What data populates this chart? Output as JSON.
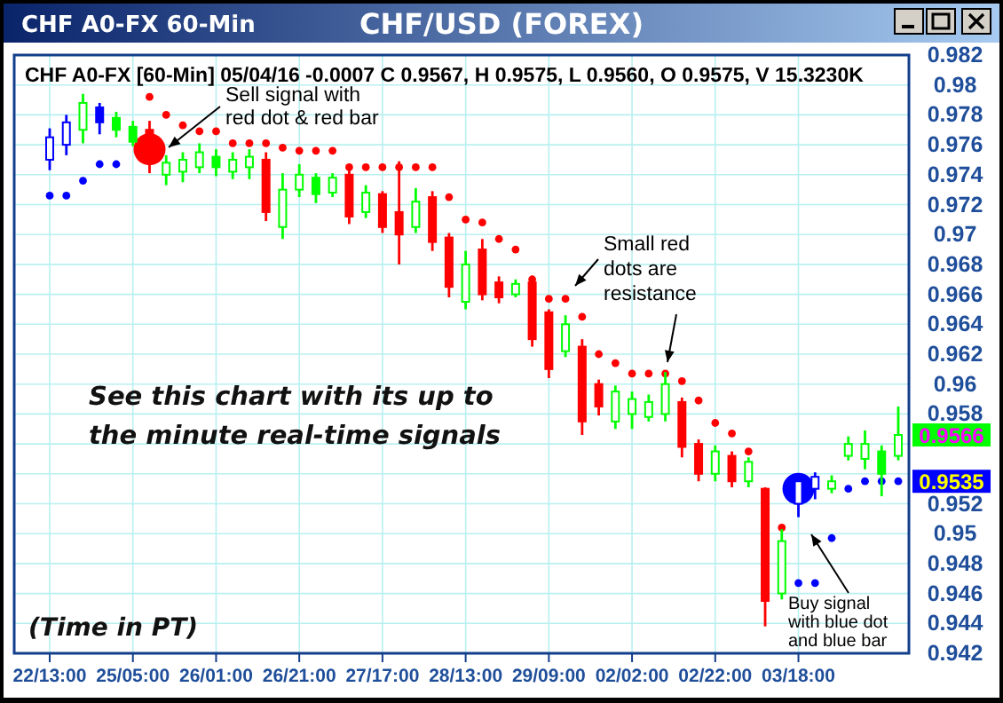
{
  "chart_data": {
    "type": "candlestick",
    "title": "CHF/USD (FOREX)",
    "subtitle": "CHF A0-FX [60-Min] 05/04/16  -0.0007 C 0.9567, H 0.9575, L 0.9560, O 0.9575, V 15.3230K",
    "categories": [
      "22/13:00",
      null,
      null,
      null,
      null,
      "25/05:00",
      null,
      null,
      null,
      null,
      "26/01:00",
      null,
      null,
      null,
      null,
      "26/21:00",
      null,
      null,
      null,
      null,
      "27/17:00",
      null,
      null,
      null,
      null,
      "28/13:00",
      null,
      null,
      null,
      null,
      "29/09:00",
      null,
      null,
      null,
      null,
      "02/02:00",
      null,
      null,
      null,
      null,
      "02/22:00",
      null,
      null,
      null,
      null,
      "03/18:00",
      null,
      null,
      null,
      null,
      null,
      null
    ],
    "ohlc": [
      [
        0.975,
        0.9771,
        0.9743,
        0.9765
      ],
      [
        0.976,
        0.978,
        0.9753,
        0.9775
      ],
      [
        0.977,
        0.9794,
        0.9761,
        0.9788
      ],
      [
        0.9785,
        0.9788,
        0.9767,
        0.9775
      ],
      [
        0.9778,
        0.9782,
        0.9765,
        0.977
      ],
      [
        0.9772,
        0.9776,
        0.9759,
        0.9762
      ],
      [
        0.977,
        0.9776,
        0.9741,
        0.9748
      ],
      [
        0.974,
        0.9753,
        0.9733,
        0.9748
      ],
      [
        0.9742,
        0.9755,
        0.9735,
        0.975
      ],
      [
        0.9745,
        0.9761,
        0.9741,
        0.9755
      ],
      [
        0.9752,
        0.9757,
        0.9739,
        0.9745
      ],
      [
        0.9742,
        0.9755,
        0.9737,
        0.975
      ],
      [
        0.9745,
        0.9757,
        0.9737,
        0.9752
      ],
      [
        0.975,
        0.9755,
        0.9709,
        0.9715
      ],
      [
        0.9705,
        0.9741,
        0.9697,
        0.973
      ],
      [
        0.973,
        0.9747,
        0.9725,
        0.974
      ],
      [
        0.9738,
        0.9741,
        0.9721,
        0.9727
      ],
      [
        0.9728,
        0.9741,
        0.9725,
        0.9738
      ],
      [
        0.974,
        0.9743,
        0.9707,
        0.9712
      ],
      [
        0.9715,
        0.9733,
        0.9711,
        0.9728
      ],
      [
        0.9727,
        0.9729,
        0.9701,
        0.9705
      ],
      [
        0.9715,
        0.9749,
        0.968,
        0.97
      ],
      [
        0.9705,
        0.9731,
        0.9701,
        0.9722
      ],
      [
        0.9725,
        0.9729,
        0.9689,
        0.9695
      ],
      [
        0.9698,
        0.9701,
        0.9658,
        0.9665
      ],
      [
        0.9655,
        0.9689,
        0.965,
        0.968
      ],
      [
        0.969,
        0.9697,
        0.9656,
        0.966
      ],
      [
        0.9668,
        0.9672,
        0.9654,
        0.9658
      ],
      [
        0.966,
        0.967,
        0.9658,
        0.9667
      ],
      [
        0.9668,
        0.967,
        0.9625,
        0.963
      ],
      [
        0.9648,
        0.965,
        0.9604,
        0.961
      ],
      [
        0.9622,
        0.9646,
        0.9618,
        0.964
      ],
      [
        0.9625,
        0.963,
        0.9566,
        0.9575
      ],
      [
        0.96,
        0.9603,
        0.9579,
        0.9585
      ],
      [
        0.9575,
        0.9599,
        0.957,
        0.9595
      ],
      [
        0.958,
        0.9595,
        0.957,
        0.959
      ],
      [
        0.9578,
        0.9593,
        0.9575,
        0.9588
      ],
      [
        0.958,
        0.9608,
        0.9575,
        0.96
      ],
      [
        0.9588,
        0.9591,
        0.9551,
        0.9558
      ],
      [
        0.956,
        0.9563,
        0.9535,
        0.954
      ],
      [
        0.954,
        0.9559,
        0.9535,
        0.9555
      ],
      [
        0.9552,
        0.9555,
        0.9531,
        0.9535
      ],
      [
        0.9535,
        0.9551,
        0.9531,
        0.9548
      ],
      [
        0.953,
        0.9531,
        0.9438,
        0.9455
      ],
      [
        0.946,
        0.9503,
        0.9456,
        0.9495
      ],
      [
        0.952,
        0.9539,
        0.9511,
        0.9535
      ],
      [
        0.953,
        0.9541,
        0.9523,
        0.9538
      ],
      [
        0.953,
        0.9539,
        0.9527,
        0.9535
      ],
      [
        0.9552,
        0.9565,
        0.9549,
        0.956
      ],
      [
        0.955,
        0.9569,
        0.9543,
        0.956
      ],
      [
        0.9555,
        0.9559,
        0.9525,
        0.954
      ],
      [
        0.9552,
        0.9585,
        0.9549,
        0.9566
      ]
    ],
    "colors": [
      "#0000ff",
      "#0000ff",
      "#00ff00",
      "#0000ff",
      "#00ff00",
      "#00ff00",
      "#ff0000",
      "#00ff00",
      "#00ff00",
      "#00ff00",
      "#00ff00",
      "#00ff00",
      "#00ff00",
      "#ff0000",
      "#00ff00",
      "#00ff00",
      "#00ff00",
      "#00ff00",
      "#ff0000",
      "#00ff00",
      "#ff0000",
      "#ff0000",
      "#00ff00",
      "#ff0000",
      "#ff0000",
      "#00ff00",
      "#ff0000",
      "#ff0000",
      "#00ff00",
      "#ff0000",
      "#ff0000",
      "#00ff00",
      "#ff0000",
      "#ff0000",
      "#00ff00",
      "#00ff00",
      "#00ff00",
      "#00ff00",
      "#ff0000",
      "#ff0000",
      "#00ff00",
      "#ff0000",
      "#00ff00",
      "#ff0000",
      "#00ff00",
      "#0000ff",
      "#0000ff",
      "#00ff00",
      "#00ff00",
      "#00ff00",
      "#00ff00",
      "#00ff00"
    ],
    "series": [
      {
        "type": "scatter",
        "color": "#ff0000",
        "values": [
          null,
          null,
          null,
          null,
          null,
          null,
          0.9792,
          0.978,
          0.9773,
          0.9769,
          0.9769,
          0.9761,
          0.9761,
          0.9761,
          0.9758,
          0.9756,
          0.9756,
          0.9756,
          0.9745,
          0.9745,
          0.9745,
          0.9745,
          0.9745,
          0.9745,
          0.9725,
          0.971,
          0.9708,
          0.9697,
          0.969,
          0.967,
          0.9657,
          0.9657,
          0.9645,
          0.962,
          0.9614,
          0.9607,
          0.9607,
          0.9607,
          0.9602,
          0.9589,
          0.9574,
          0.9567,
          0.9555,
          null,
          0.9504,
          null,
          null,
          null,
          null,
          null,
          null,
          null
        ]
      },
      {
        "type": "scatter",
        "color": "#0000ff",
        "values": [
          0.9726,
          0.9726,
          0.9736,
          0.9747,
          0.9747,
          null,
          null,
          null,
          null,
          null,
          null,
          null,
          null,
          null,
          null,
          null,
          null,
          null,
          null,
          null,
          null,
          null,
          null,
          null,
          null,
          null,
          null,
          null,
          null,
          null,
          null,
          null,
          null,
          null,
          null,
          null,
          null,
          null,
          null,
          null,
          null,
          null,
          null,
          null,
          null,
          0.9467,
          0.9467,
          0.9497,
          0.953,
          0.9535,
          0.9535,
          0.9535
        ]
      },
      {
        "type": "scatter",
        "color": "#ff0000",
        "values": [
          null,
          null,
          null,
          null,
          null,
          null,
          0.9757,
          null,
          null,
          null,
          null,
          null,
          null,
          null,
          null,
          null,
          null,
          null,
          null,
          null,
          null,
          null,
          null,
          null,
          null,
          null,
          null,
          null,
          null,
          null,
          null,
          null,
          null,
          null,
          null,
          null,
          null,
          null,
          null,
          null,
          null,
          null,
          null,
          null,
          null,
          null,
          null,
          null,
          null,
          null,
          null,
          null
        ]
      },
      {
        "type": "scatter",
        "color": "#0000ff",
        "values": [
          null,
          null,
          null,
          null,
          null,
          null,
          null,
          null,
          null,
          null,
          null,
          null,
          null,
          null,
          null,
          null,
          null,
          null,
          null,
          null,
          null,
          null,
          null,
          null,
          null,
          null,
          null,
          null,
          null,
          null,
          null,
          null,
          null,
          null,
          null,
          null,
          null,
          null,
          null,
          null,
          null,
          null,
          null,
          null,
          null,
          0.953,
          null,
          null,
          null,
          null,
          null,
          null
        ]
      }
    ],
    "ylim": [
      0.942,
      0.982
    ],
    "yticks": [
      0.942,
      0.944,
      0.946,
      0.948,
      0.95,
      0.952,
      {
        "value": 0.954,
        "label": null
      },
      {
        "value": 0.956,
        "label": null
      },
      0.958,
      0.96,
      0.962,
      0.964,
      0.966,
      0.968,
      0.97,
      0.972,
      0.974,
      0.976,
      0.978,
      0.98,
      0.982
    ],
    "grid": true,
    "marker": "circle",
    "annotations": [
      "CHF A0-FX 60-Min",
      "Sell signal with red dot & red bar",
      "Small red dots are resistance",
      "Buy signal with blue dot and blue bar",
      "See this chart with its up to the minute real-time signals",
      "(Time in PT)",
      "0.9566",
      "0.9535"
    ]
  }
}
